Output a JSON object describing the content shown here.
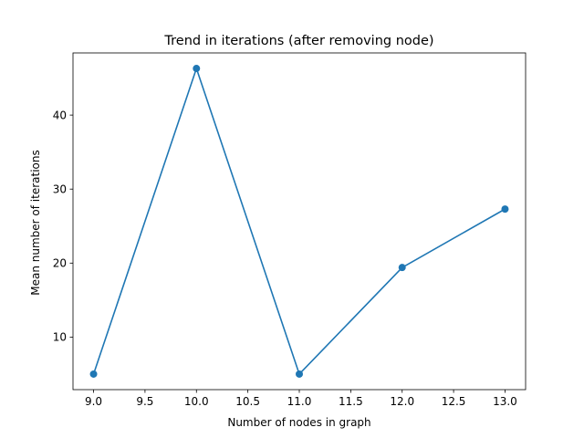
{
  "chart_data": {
    "type": "line",
    "title": "Trend in iterations (after removing node)",
    "xlabel": "Number of nodes in graph",
    "ylabel": "Mean number of iterations",
    "x": [
      9.0,
      10.0,
      11.0,
      12.0,
      13.0
    ],
    "series": [
      {
        "values": [
          5.0,
          46.3,
          5.0,
          19.4,
          27.3
        ]
      }
    ],
    "xlim": [
      8.8,
      13.2
    ],
    "ylim": [
      2.9,
      48.4
    ],
    "xticks": [
      "9.0",
      "9.5",
      "10.0",
      "10.5",
      "11.0",
      "11.5",
      "12.0",
      "12.5",
      "13.0"
    ],
    "xtick_values": [
      9.0,
      9.5,
      10.0,
      10.5,
      11.0,
      11.5,
      12.0,
      12.5,
      13.0
    ],
    "yticks": [
      "10",
      "20",
      "30",
      "40"
    ],
    "ytick_values": [
      10,
      20,
      30,
      40
    ],
    "grid": false,
    "legend": "none",
    "markers": true,
    "line_color": "#1f77b4"
  }
}
